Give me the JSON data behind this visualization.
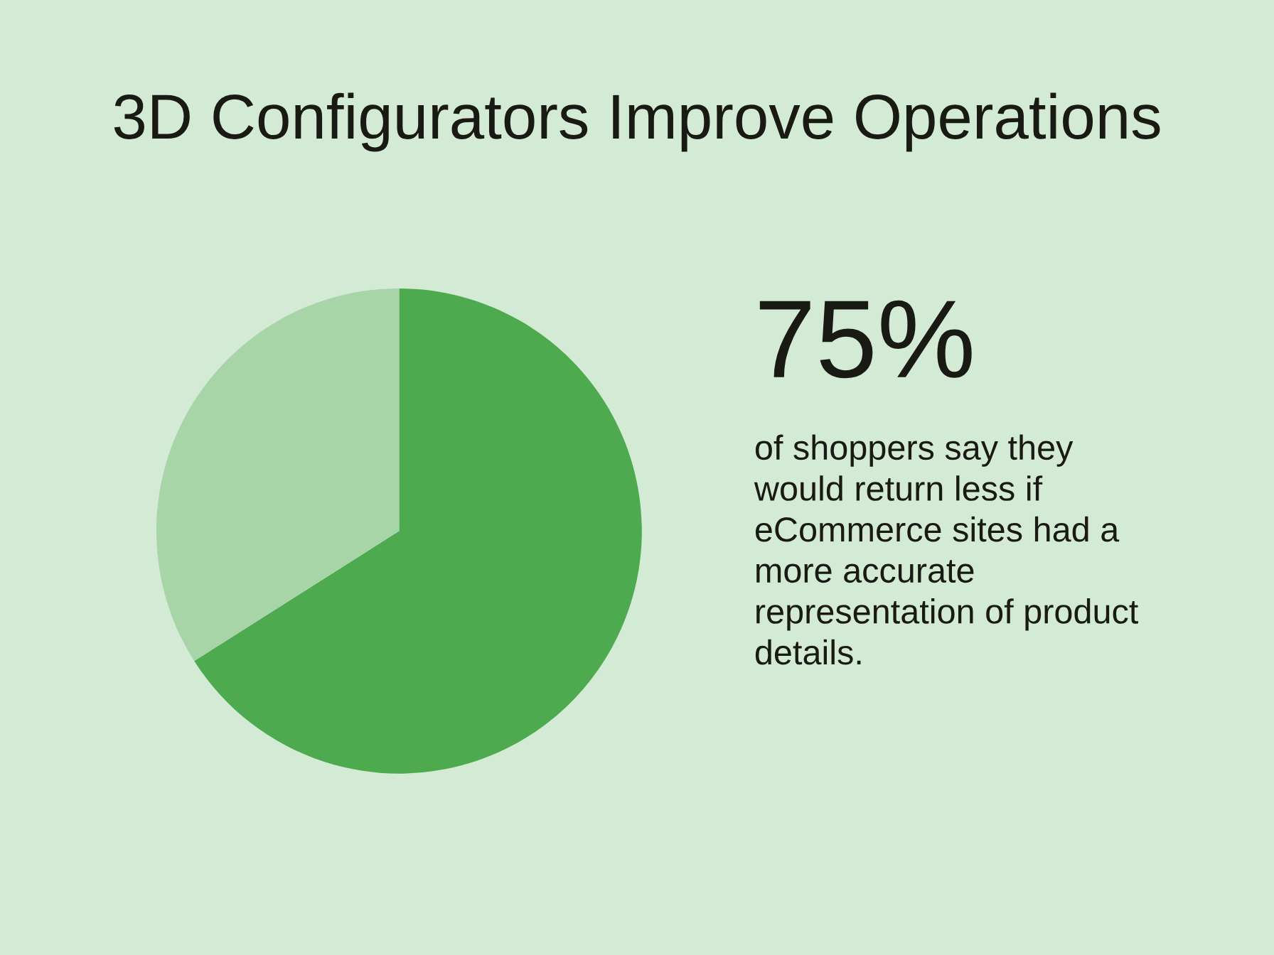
{
  "chart_data": {
    "type": "pie",
    "title": "3D Configurators Improve Operations",
    "categories": [
      null,
      null
    ],
    "values": [
      66,
      34
    ],
    "colors": [
      "#4eaa4e",
      "#a8d5a8"
    ],
    "annotations": [
      "75%",
      "of shoppers say they\nwould return less if\neCommerce sites had a\nmore accurate\nrepresentation of product\ndetails."
    ]
  }
}
